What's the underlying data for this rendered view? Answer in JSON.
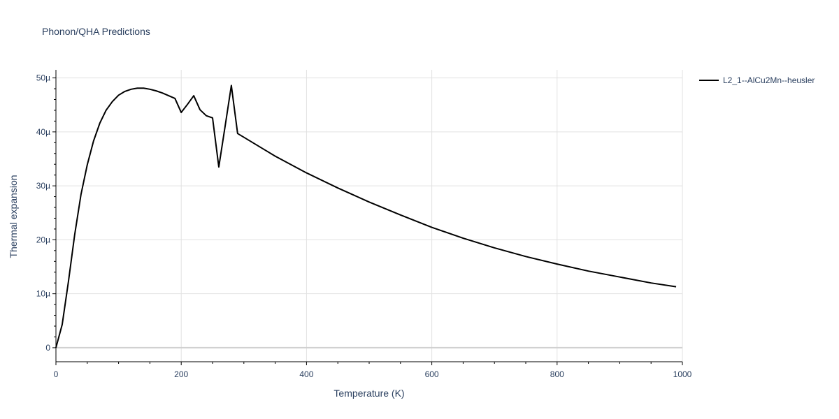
{
  "chart_data": {
    "type": "line",
    "title": "Phonon/QHA Predictions",
    "xlabel": "Temperature (K)",
    "ylabel": "Thermal expansion",
    "xlim": [
      0,
      1000
    ],
    "ylim": [
      -2.6,
      51.5
    ],
    "y_unit_scale": "µ (1e-6)",
    "grid": true,
    "legend_position": "top-right-outside",
    "x_ticks": [
      {
        "value": 0,
        "label": "0"
      },
      {
        "value": 200,
        "label": "200"
      },
      {
        "value": 400,
        "label": "400"
      },
      {
        "value": 600,
        "label": "600"
      },
      {
        "value": 800,
        "label": "800"
      },
      {
        "value": 1000,
        "label": "1000"
      }
    ],
    "y_ticks": [
      {
        "value": 0,
        "label": "0"
      },
      {
        "value": 10,
        "label": "10µ"
      },
      {
        "value": 20,
        "label": "20µ"
      },
      {
        "value": 30,
        "label": "30µ"
      },
      {
        "value": 40,
        "label": "40µ"
      },
      {
        "value": 50,
        "label": "50µ"
      }
    ],
    "series": [
      {
        "name": "L2_1--AlCu2Mn--heusler",
        "color": "#000000",
        "x": [
          0,
          10,
          20,
          30,
          40,
          50,
          60,
          70,
          80,
          90,
          100,
          110,
          120,
          130,
          140,
          150,
          160,
          170,
          180,
          190,
          200,
          210,
          220,
          230,
          240,
          250,
          260,
          270,
          280,
          290,
          300,
          350,
          400,
          450,
          500,
          550,
          600,
          650,
          700,
          750,
          800,
          850,
          900,
          950,
          990
        ],
        "y": [
          0,
          4.3,
          12.3,
          21,
          28.4,
          33.9,
          38.3,
          41.6,
          44,
          45.6,
          46.8,
          47.5,
          47.9,
          48.1,
          48.1,
          47.9,
          47.6,
          47.2,
          46.7,
          46.2,
          43.6,
          45.1,
          46.7,
          44.1,
          43,
          42.6,
          33.5,
          41,
          48.6,
          39.7,
          39,
          35.5,
          32.4,
          29.6,
          27,
          24.6,
          22.3,
          20.3,
          18.5,
          16.9,
          15.5,
          14.2,
          13.1,
          12,
          11.3
        ]
      }
    ]
  }
}
